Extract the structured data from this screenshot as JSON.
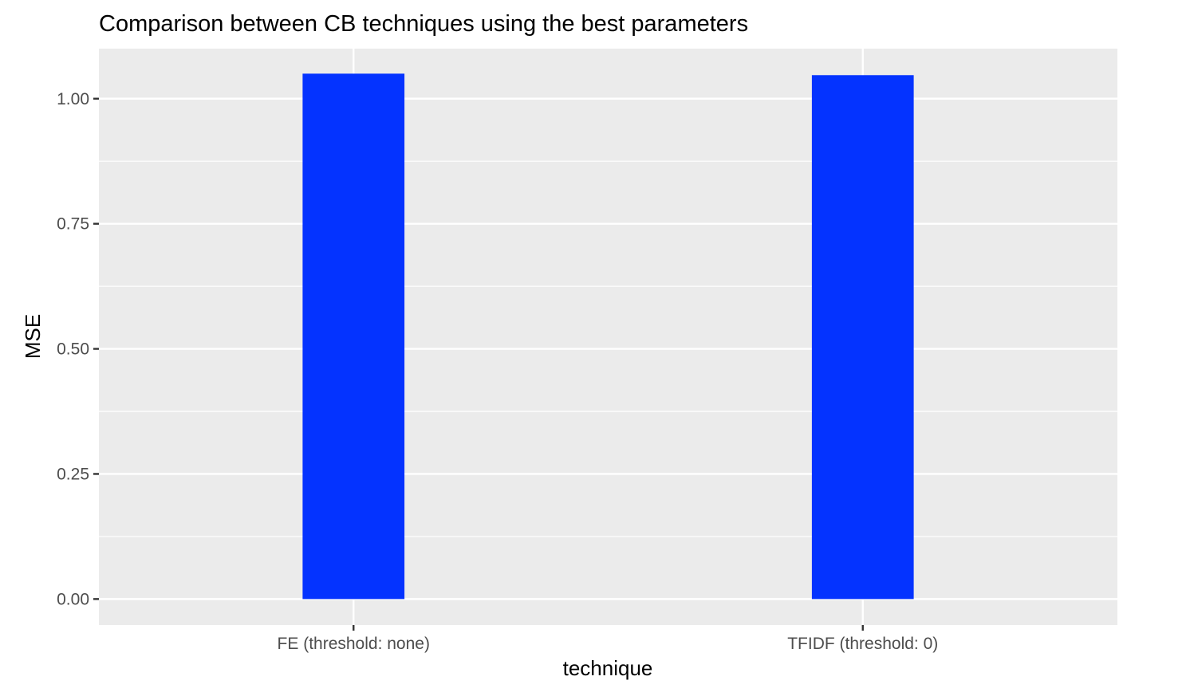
{
  "chart_data": {
    "type": "bar",
    "title": "Comparison between CB techniques using the best parameters",
    "xlabel": "technique",
    "ylabel": "MSE",
    "categories": [
      "FE (threshold: none)",
      "TFIDF (threshold: 0)"
    ],
    "series": [
      {
        "values": [
          1.05,
          1.047
        ],
        "color": "#0433FF"
      }
    ],
    "ylim": [
      -0.052,
      1.1
    ],
    "yticks": [
      0.0,
      0.25,
      0.5,
      0.75,
      1.0
    ],
    "ytick_labels": [
      "0.00",
      "0.25",
      "0.50",
      "0.75",
      "1.00"
    ],
    "grid": true,
    "legend": "none",
    "colors": {
      "panel_background": "#EBEBEB",
      "grid": "#FFFFFF",
      "bar": "#0433FF",
      "tick_text": "#4D4D4D",
      "tick_mark": "#333333"
    }
  }
}
